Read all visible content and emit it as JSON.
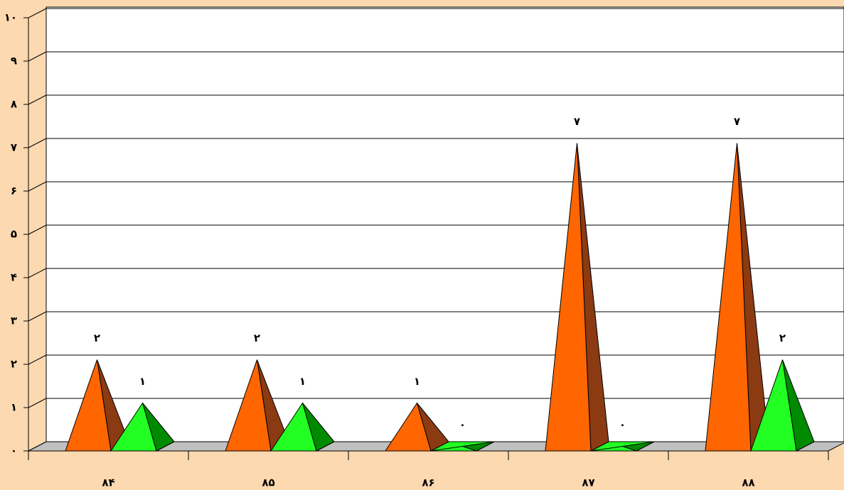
{
  "chart_data": {
    "type": "pyramid3d",
    "categories": [
      "۸۴",
      "۸۵",
      "۸۶",
      "۸۷",
      "۸۸"
    ],
    "series": [
      {
        "color": "#ff6600",
        "side_color": "#8b3a12",
        "values": [
          2,
          2,
          1,
          7,
          7
        ],
        "value_labels": [
          "۲",
          "۲",
          "۱",
          "۷",
          "۷"
        ]
      },
      {
        "color": "#22ff22",
        "side_color": "#008a00",
        "values": [
          1,
          1,
          0,
          0,
          2
        ],
        "value_labels": [
          "۱",
          "۱",
          "۰",
          "۰",
          "۲"
        ]
      }
    ],
    "ylim": [
      0,
      10
    ],
    "yticks": [
      {
        "value": 0,
        "label": "۰"
      },
      {
        "value": 1,
        "label": "۱"
      },
      {
        "value": 2,
        "label": "۲"
      },
      {
        "value": 3,
        "label": "۳"
      },
      {
        "value": 4,
        "label": "۴"
      },
      {
        "value": 5,
        "label": "۵"
      },
      {
        "value": 6,
        "label": "۶"
      },
      {
        "value": 7,
        "label": "۷"
      },
      {
        "value": 8,
        "label": "۸"
      },
      {
        "value": 9,
        "label": "۹"
      },
      {
        "value": 10,
        "label": "۱۰"
      }
    ],
    "grid": true,
    "floor_color": "#c0c0c0"
  }
}
